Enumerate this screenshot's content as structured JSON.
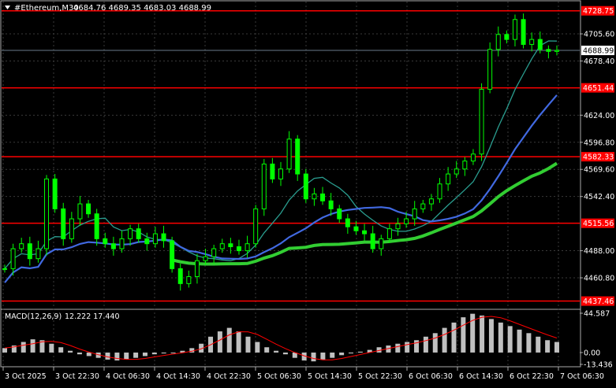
{
  "header": {
    "symbol_label": "#Ethereum,M30",
    "ohlc": "4684.76 4689.35 4683.03 4688.99"
  },
  "chart_data": [
    {
      "type": "candlestick",
      "title": "#Ethereum,M30",
      "ylim": [
        4430,
        4738
      ],
      "price_ticks": [
        "4705.60",
        "4678.40",
        "4624.00",
        "4596.80",
        "4569.60",
        "4542.40",
        "4488.00",
        "4460.80"
      ],
      "x_ticks": [
        "3 Oct 2025",
        "3 Oct 22:30",
        "4 Oct 06:30",
        "4 Oct 14:30",
        "4 Oct 22:30",
        "5 Oct 06:30",
        "5 Oct 14:30",
        "5 Oct 22:30",
        "6 Oct 06:30",
        "6 Oct 14:30",
        "6 Oct 22:30",
        "7 Oct 06:30"
      ],
      "current_price": "4688.99",
      "levels": [
        {
          "value": 4728.75,
          "label": "4728.75"
        },
        {
          "value": 4651.44,
          "label": "4651.44"
        },
        {
          "value": 4582.33,
          "label": "4582.33"
        },
        {
          "value": 4515.56,
          "label": "4515.56"
        },
        {
          "value": 4437.46,
          "label": "4437.46"
        }
      ],
      "close_path": [
        4470,
        4490,
        4495,
        4480,
        4490,
        4560,
        4530,
        4500,
        4520,
        4535,
        4525,
        4500,
        4495,
        4490,
        4500,
        4510,
        4500,
        4495,
        4505,
        4498,
        4470,
        4455,
        4462,
        4478,
        4482,
        4490,
        4495,
        4492,
        4488,
        4495,
        4530,
        4575,
        4560,
        4570,
        4600,
        4565,
        4540,
        4545,
        4538,
        4530,
        4520,
        4512,
        4508,
        4505,
        4490,
        4500,
        4510,
        4515,
        4520,
        4530,
        4535,
        4540,
        4555,
        4565,
        4570,
        4578,
        4585,
        4650,
        4690,
        4705,
        4700,
        4720,
        4695,
        4700,
        4690,
        4688,
        4689
      ],
      "ma_colors": {
        "fast": "#2a9d8f",
        "mid": "#4169e1",
        "slow": "#32cd32"
      },
      "level_color": "#ff0000",
      "candle_color": "#00ff00"
    },
    {
      "type": "bar",
      "title": "MACD(12,26,9)",
      "values_label": "12.222 17.440",
      "ylim": [
        -13.436,
        44.587
      ],
      "ticks": [
        "44.587",
        "0.00",
        "-13.436"
      ],
      "macd_path": [
        5,
        8,
        12,
        15,
        14,
        10,
        6,
        2,
        -2,
        -4,
        -6,
        -8,
        -9,
        -8,
        -6,
        -4,
        -2,
        -1,
        0,
        2,
        5,
        10,
        18,
        24,
        28,
        24,
        18,
        12,
        6,
        2,
        -2,
        -6,
        -9,
        -10,
        -8,
        -6,
        -3,
        -1,
        1,
        3,
        6,
        8,
        10,
        12,
        14,
        18,
        22,
        28,
        34,
        40,
        44,
        42,
        38,
        34,
        30,
        26,
        22,
        18,
        14,
        12
      ],
      "signal_color": "#ff0000",
      "bar_color": "#c0c0c0"
    }
  ]
}
